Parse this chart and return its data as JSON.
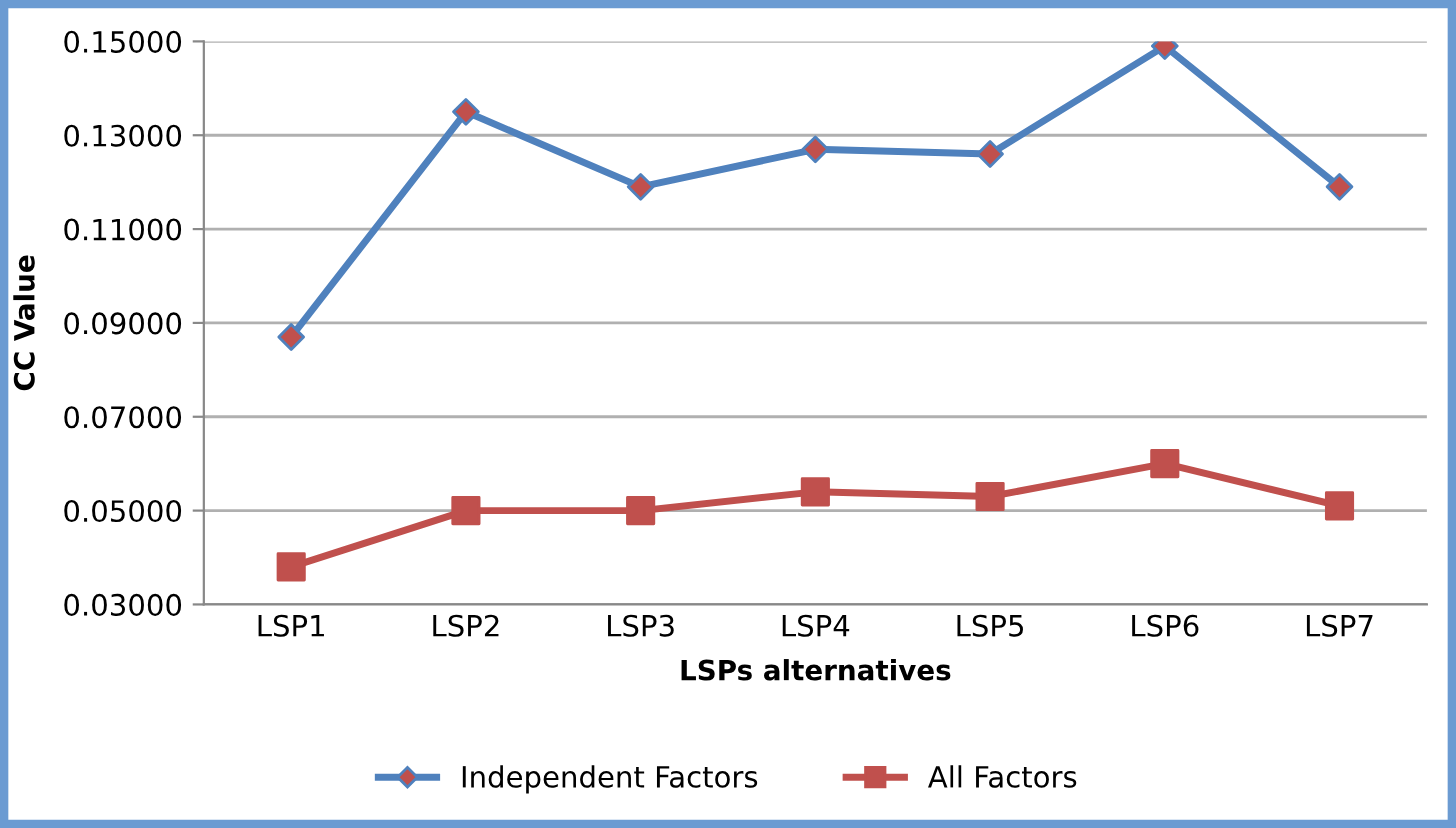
{
  "chart_data": {
    "type": "line",
    "xlabel": "LSPs alternatives",
    "ylabel": "CC Value",
    "categories": [
      "LSP1",
      "LSP2",
      "LSP3",
      "LSP4",
      "LSP5",
      "LSP6",
      "LSP7"
    ],
    "series": [
      {
        "name": "Independent Factors",
        "color": "#4f81bd",
        "marker": "diamond",
        "values": [
          0.087,
          0.135,
          0.119,
          0.127,
          0.126,
          0.149,
          0.119
        ]
      },
      {
        "name": "All Factors",
        "color": "#c0504d",
        "marker": "square",
        "values": [
          0.038,
          0.05,
          0.05,
          0.054,
          0.053,
          0.06,
          0.051
        ]
      }
    ],
    "ylim": [
      0.03,
      0.15
    ],
    "yticks": [
      {
        "value": 0.03,
        "label": "0.03000"
      },
      {
        "value": 0.05,
        "label": "0.05000"
      },
      {
        "value": 0.07,
        "label": "0.07000"
      },
      {
        "value": 0.09,
        "label": "0.09000"
      },
      {
        "value": 0.11,
        "label": "0.11000"
      },
      {
        "value": 0.13,
        "label": "0.13000"
      },
      {
        "value": 0.15,
        "label": "0.15000"
      }
    ],
    "grid": "y",
    "legend": "bottom",
    "line_style": "solid"
  }
}
